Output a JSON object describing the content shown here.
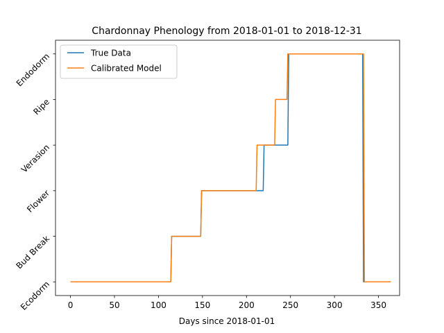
{
  "chart_data": {
    "type": "line",
    "title": "Chardonnay Phenology from 2018-01-01 to 2018-12-31",
    "xlabel": "Days since 2018-01-01",
    "ylabel": "",
    "xlim": [
      -17,
      374
    ],
    "ylim": [
      -0.3,
      5.3
    ],
    "xticks": [
      0,
      50,
      100,
      150,
      200,
      250,
      300,
      350
    ],
    "yticks": [
      0,
      1,
      2,
      3,
      4,
      5
    ],
    "ytick_labels": [
      "Ecodorm",
      "Bud Break",
      "Flower",
      "Verasion",
      "Ripe",
      "Endodorm"
    ],
    "grid": false,
    "legend_position": "top-left",
    "series": [
      {
        "name": "True Data",
        "color": "#1f77b4",
        "points": [
          [
            0,
            0
          ],
          [
            114,
            0
          ],
          [
            115,
            1
          ],
          [
            148,
            1
          ],
          [
            149,
            2
          ],
          [
            219,
            2
          ],
          [
            220,
            3
          ],
          [
            247,
            3
          ],
          [
            248,
            5
          ],
          [
            332,
            5
          ],
          [
            333,
            0
          ],
          [
            364,
            0
          ]
        ]
      },
      {
        "name": "Calibrated Model",
        "color": "#ff7f0e",
        "points": [
          [
            0,
            0
          ],
          [
            114,
            0
          ],
          [
            115,
            1
          ],
          [
            148,
            1
          ],
          [
            149,
            2
          ],
          [
            211,
            2
          ],
          [
            212,
            3
          ],
          [
            232,
            3
          ],
          [
            233,
            4
          ],
          [
            246,
            4
          ],
          [
            247,
            5
          ],
          [
            333,
            5
          ],
          [
            334,
            0
          ],
          [
            364,
            0
          ]
        ]
      }
    ]
  }
}
